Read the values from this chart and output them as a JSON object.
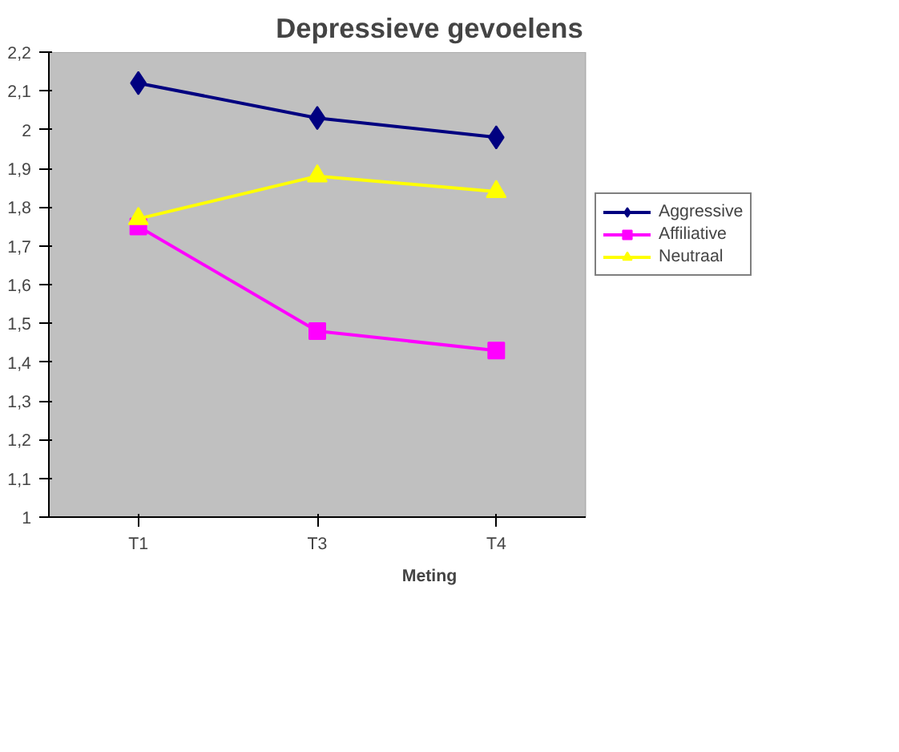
{
  "chart_data": {
    "type": "line",
    "title": "Depressieve gevoelens",
    "xlabel": "Meting",
    "categories": [
      "T1",
      "T3",
      "T4"
    ],
    "ylim": [
      1,
      2.2
    ],
    "yticks": [
      1,
      {
        "value": 1.1,
        "label": "1,1"
      },
      {
        "value": 1.2,
        "label": "1,2"
      },
      {
        "value": 1.3,
        "label": "1,3"
      },
      {
        "value": 1.4,
        "label": "1,4"
      },
      {
        "value": 1.5,
        "label": "1,5"
      },
      {
        "value": 1.6,
        "label": "1,6"
      },
      {
        "value": 1.7,
        "label": "1,7"
      },
      {
        "value": 1.8,
        "label": "1,8"
      },
      {
        "value": 1.9,
        "label": "1,9"
      },
      2,
      {
        "value": 2.1,
        "label": "2,1"
      },
      {
        "value": 2.2,
        "label": "2,2"
      }
    ],
    "grid": false,
    "legend": "right",
    "line_style": "solid",
    "series": [
      {
        "name": "Aggressive",
        "color": "#000080",
        "marker": "diamond",
        "values": [
          2.12,
          2.03,
          1.98
        ]
      },
      {
        "name": "Affiliative",
        "color": "#ff00ff",
        "marker": "square",
        "values": [
          1.75,
          1.48,
          1.43
        ]
      },
      {
        "name": "Neutraal",
        "color": "#ffff00",
        "marker": "triangle",
        "values": [
          1.77,
          1.88,
          1.84
        ]
      }
    ]
  }
}
